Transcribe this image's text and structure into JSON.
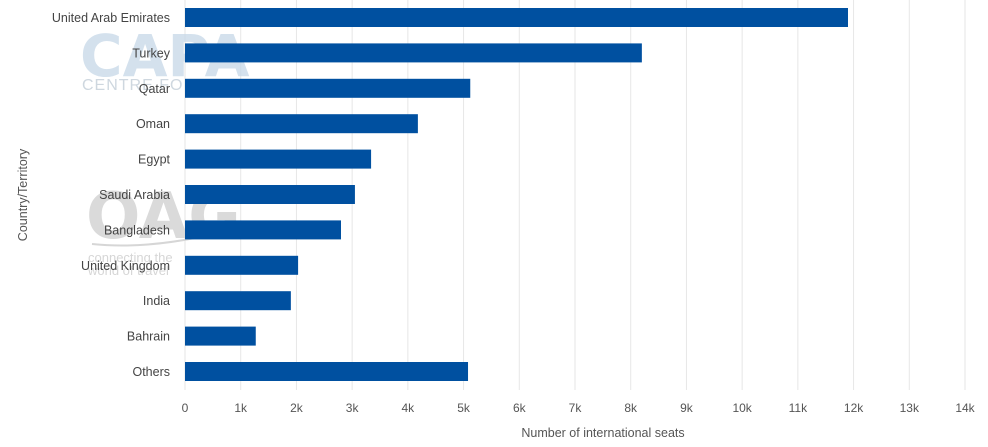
{
  "watermarks": {
    "capa": "CAPA",
    "capa_sub": "CENTRE FOR AVIATION",
    "oag": "OAG",
    "oag_sub_1": "connecting the",
    "oag_sub_2": "world of travel"
  },
  "chart_data": {
    "type": "bar",
    "orientation": "horizontal",
    "title": "",
    "xlabel": "Number of international seats",
    "ylabel": "Country/Territory",
    "categories": [
      "United Arab Emirates",
      "Turkey",
      "Qatar",
      "Oman",
      "Egypt",
      "Saudi Arabia",
      "Bangladesh",
      "United Kingdom",
      "India",
      "Bahrain",
      "Others"
    ],
    "values": [
      11900,
      8200,
      5120,
      4180,
      3340,
      3050,
      2800,
      2030,
      1900,
      1270,
      5080
    ],
    "xlim": [
      0,
      14000
    ],
    "xticks": [
      "0",
      "1k",
      "2k",
      "3k",
      "4k",
      "5k",
      "6k",
      "7k",
      "8k",
      "9k",
      "10k",
      "11k",
      "12k",
      "13k",
      "14k"
    ],
    "grid": "vertical",
    "bar_color": "#0050a0",
    "grid_color": "#e6e6e6"
  }
}
